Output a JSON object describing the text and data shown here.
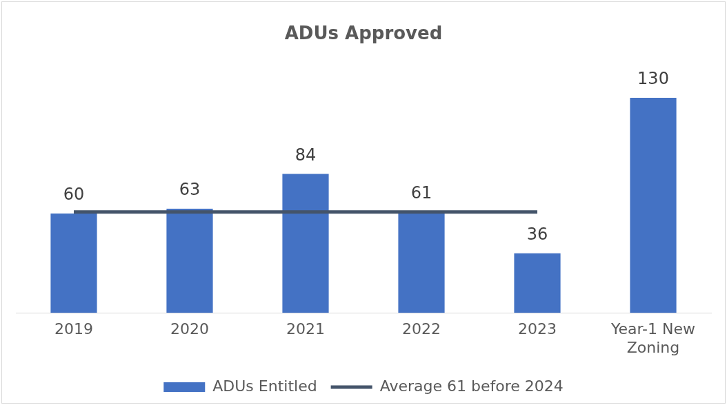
{
  "chart_data": {
    "type": "bar",
    "title": "ADUs Approved",
    "categories": [
      "2019",
      "2020",
      "2021",
      "2022",
      "2023",
      "Year-1 New Zoning"
    ],
    "series": [
      {
        "name": "ADUs Entitled",
        "color": "#4472c4",
        "values": [
          60,
          63,
          84,
          61,
          36,
          130
        ],
        "value_labels": [
          "60",
          "63",
          "84",
          "61",
          "36",
          "130"
        ]
      },
      {
        "name": "Average 61 before 2024",
        "type": "line",
        "color": "#44546a",
        "values": [
          61,
          61,
          61,
          61,
          61,
          null
        ]
      }
    ],
    "tick_labels": "x",
    "grid": false,
    "legend": "bottom",
    "marker": "none",
    "line_style": "solid"
  }
}
